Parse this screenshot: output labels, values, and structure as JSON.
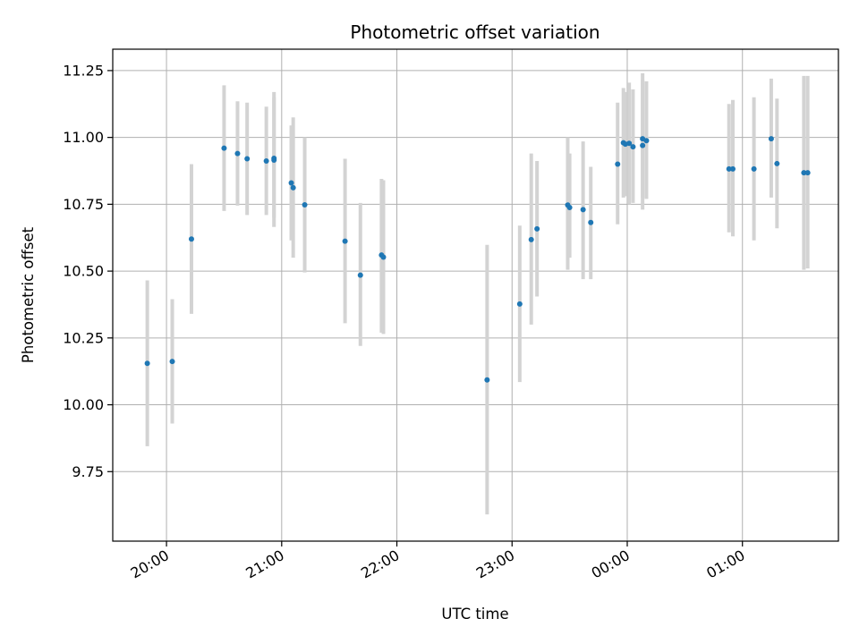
{
  "chart_data": {
    "type": "scatter",
    "title": "Photometric offset variation",
    "xlabel": "UTC time",
    "ylabel": "Photometric offset",
    "x_axis_type": "time",
    "x_ticks": [
      "20:00",
      "21:00",
      "22:00",
      "23:00",
      "00:00",
      "01:00"
    ],
    "x_tick_values": [
      "2000-01-01T20:00",
      "2000-01-01T21:00",
      "2000-01-01T22:00",
      "2000-01-01T23:00",
      "2000-01-02T00:00",
      "2000-01-02T01:00"
    ],
    "x_tick_label_rotation": 30,
    "xlim": [
      "2000-01-01T19:32",
      "2000-01-02T01:50"
    ],
    "y_ticks": [
      "9.75",
      "10.00",
      "10.25",
      "10.50",
      "10.75",
      "11.00",
      "11.25"
    ],
    "y_tick_values": [
      9.75,
      10.0,
      10.25,
      10.5,
      10.75,
      11.0,
      11.25
    ],
    "ylim": [
      9.49,
      11.33
    ],
    "grid": true,
    "marker_color": "#1f77b4",
    "errorbar_color": "#d3d3d3",
    "series": [
      {
        "points": [
          {
            "x": "2000-01-01T19:50",
            "y": 10.155,
            "ylow": 9.845,
            "yhigh": 10.465
          },
          {
            "x": "2000-01-01T20:03",
            "y": 10.162,
            "ylow": 9.93,
            "yhigh": 10.395
          },
          {
            "x": "2000-01-01T20:13",
            "y": 10.62,
            "ylow": 10.34,
            "yhigh": 10.9
          },
          {
            "x": "2000-01-01T20:30",
            "y": 10.96,
            "ylow": 10.725,
            "yhigh": 11.195
          },
          {
            "x": "2000-01-01T20:37",
            "y": 10.94,
            "ylow": 10.745,
            "yhigh": 11.135
          },
          {
            "x": "2000-01-01T20:42",
            "y": 10.92,
            "ylow": 10.71,
            "yhigh": 11.13
          },
          {
            "x": "2000-01-01T20:52",
            "y": 10.912,
            "ylow": 10.71,
            "yhigh": 11.115
          },
          {
            "x": "2000-01-01T20:56",
            "y": 10.915,
            "ylow": 10.665,
            "yhigh": 11.17
          },
          {
            "x": "2000-01-01T20:56",
            "y": 10.922,
            "ylow": 10.7,
            "yhigh": 11.15
          },
          {
            "x": "2000-01-01T21:05",
            "y": 10.83,
            "ylow": 10.615,
            "yhigh": 11.045
          },
          {
            "x": "2000-01-01T21:06",
            "y": 10.812,
            "ylow": 10.55,
            "yhigh": 11.075
          },
          {
            "x": "2000-01-01T21:12",
            "y": 10.748,
            "ylow": 10.495,
            "yhigh": 11.0
          },
          {
            "x": "2000-01-01T21:33",
            "y": 10.612,
            "ylow": 10.305,
            "yhigh": 10.92
          },
          {
            "x": "2000-01-01T21:41",
            "y": 10.485,
            "ylow": 10.22,
            "yhigh": 10.755
          },
          {
            "x": "2000-01-01T21:52",
            "y": 10.56,
            "ylow": 10.27,
            "yhigh": 10.845
          },
          {
            "x": "2000-01-01T21:53",
            "y": 10.552,
            "ylow": 10.265,
            "yhigh": 10.84
          },
          {
            "x": "2000-01-01T22:47",
            "y": 10.093,
            "ylow": 9.59,
            "yhigh": 10.598
          },
          {
            "x": "2000-01-01T23:04",
            "y": 10.377,
            "ylow": 10.085,
            "yhigh": 10.67
          },
          {
            "x": "2000-01-01T23:10",
            "y": 10.618,
            "ylow": 10.3,
            "yhigh": 10.94
          },
          {
            "x": "2000-01-01T23:13",
            "y": 10.658,
            "ylow": 10.405,
            "yhigh": 10.912
          },
          {
            "x": "2000-01-01T23:29",
            "y": 10.747,
            "ylow": 10.505,
            "yhigh": 11.0
          },
          {
            "x": "2000-01-01T23:30",
            "y": 10.738,
            "ylow": 10.55,
            "yhigh": 10.94
          },
          {
            "x": "2000-01-01T23:37",
            "y": 10.73,
            "ylow": 10.47,
            "yhigh": 10.985
          },
          {
            "x": "2000-01-01T23:41",
            "y": 10.682,
            "ylow": 10.47,
            "yhigh": 10.89
          },
          {
            "x": "2000-01-01T23:55",
            "y": 10.9,
            "ylow": 10.675,
            "yhigh": 11.13
          },
          {
            "x": "2000-01-01T23:58",
            "y": 10.98,
            "ylow": 10.775,
            "yhigh": 11.185
          },
          {
            "x": "2000-01-01T23:59",
            "y": 10.975,
            "ylow": 10.78,
            "yhigh": 11.17
          },
          {
            "x": "2000-01-02T00:01",
            "y": 10.978,
            "ylow": 10.75,
            "yhigh": 11.205
          },
          {
            "x": "2000-01-02T00:03",
            "y": 10.965,
            "ylow": 10.755,
            "yhigh": 11.18
          },
          {
            "x": "2000-01-02T00:08",
            "y": 10.97,
            "ylow": 10.73,
            "yhigh": 11.24
          },
          {
            "x": "2000-01-02T00:08",
            "y": 10.995,
            "ylow": 10.775,
            "yhigh": 11.215
          },
          {
            "x": "2000-01-02T00:10",
            "y": 10.988,
            "ylow": 10.77,
            "yhigh": 11.21
          },
          {
            "x": "2000-01-02T00:53",
            "y": 10.882,
            "ylow": 10.645,
            "yhigh": 11.125
          },
          {
            "x": "2000-01-02T00:55",
            "y": 10.882,
            "ylow": 10.63,
            "yhigh": 11.14
          },
          {
            "x": "2000-01-02T01:06",
            "y": 10.882,
            "ylow": 10.615,
            "yhigh": 11.15
          },
          {
            "x": "2000-01-02T01:15",
            "y": 10.995,
            "ylow": 10.775,
            "yhigh": 11.22
          },
          {
            "x": "2000-01-02T01:18",
            "y": 10.902,
            "ylow": 10.66,
            "yhigh": 11.145
          },
          {
            "x": "2000-01-02T01:32",
            "y": 10.868,
            "ylow": 10.505,
            "yhigh": 11.23
          },
          {
            "x": "2000-01-02T01:34",
            "y": 10.868,
            "ylow": 10.51,
            "yhigh": 11.23
          }
        ]
      }
    ]
  }
}
